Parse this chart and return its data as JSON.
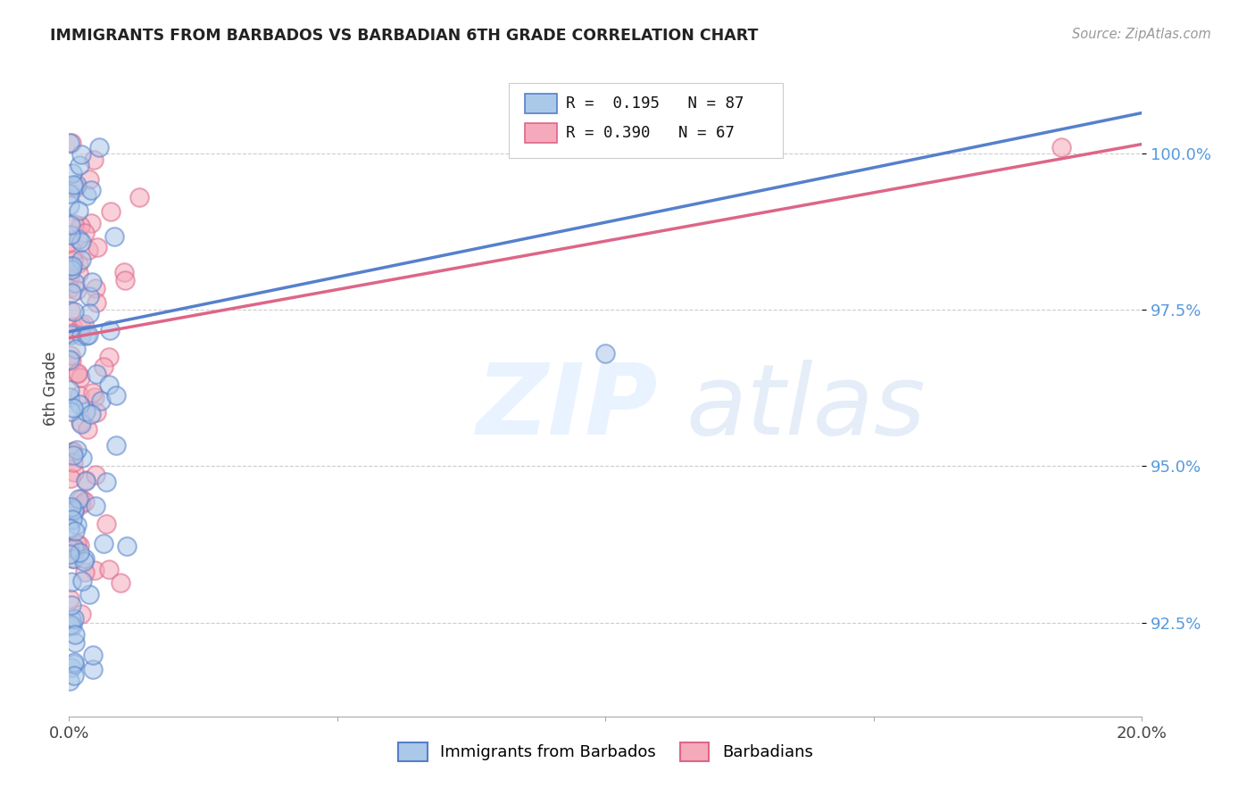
{
  "title": "IMMIGRANTS FROM BARBADOS VS BARBADIAN 6TH GRADE CORRELATION CHART",
  "source": "Source: ZipAtlas.com",
  "ylabel": "6th Grade",
  "yticks": [
    92.5,
    95.0,
    97.5,
    100.0
  ],
  "xmin": 0.0,
  "xmax": 20.0,
  "ymin": 91.0,
  "ymax": 101.5,
  "blue_R": 0.195,
  "blue_N": 87,
  "pink_R": 0.39,
  "pink_N": 67,
  "blue_color": "#aac8e8",
  "pink_color": "#f5aabb",
  "blue_line_color": "#5580cc",
  "pink_line_color": "#dd6688",
  "legend_label_blue": "Immigrants from Barbados",
  "legend_label_pink": "Barbadians"
}
